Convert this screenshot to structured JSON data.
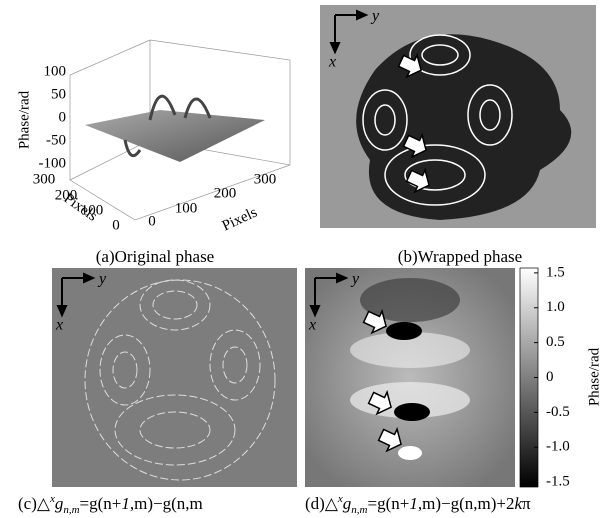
{
  "panels": [
    {
      "caption": "(a)Original phase",
      "zlabel": "Phase/rad",
      "zlim": [
        -100,
        100
      ],
      "zticks": [
        100,
        50,
        0,
        -50,
        -100
      ],
      "xlabel": "Pixels",
      "xticks": [
        300,
        200,
        100,
        0
      ],
      "ylabel": "Pixels",
      "yticks": [
        0,
        100,
        200,
        300
      ]
    },
    {
      "caption": "(b)Wrapped phase",
      "axis_x": "x",
      "axis_y": "y"
    },
    {
      "caption": [
        "(c)△",
        "x",
        "g",
        "n,m",
        "=g(n+",
        "1",
        ",m)−g(n,m"
      ],
      "axis_x": "x",
      "axis_y": "y"
    },
    {
      "caption": [
        "(d)△",
        "x",
        "g",
        "n,m",
        "=g(n+",
        "1",
        ",m)−g(n,m)+2",
        "k",
        "π"
      ],
      "axis_x": "x",
      "axis_y": "y",
      "colorbar": {
        "label": "Phase/rad",
        "lim": [
          -1.57,
          1.57
        ],
        "ticks": [
          1.5,
          {
            "value": 1.0,
            "label": "1.0"
          },
          0.5,
          0,
          -0.5,
          {
            "value": -1.0,
            "label": "-1.0"
          },
          -1.5
        ]
      }
    }
  ]
}
